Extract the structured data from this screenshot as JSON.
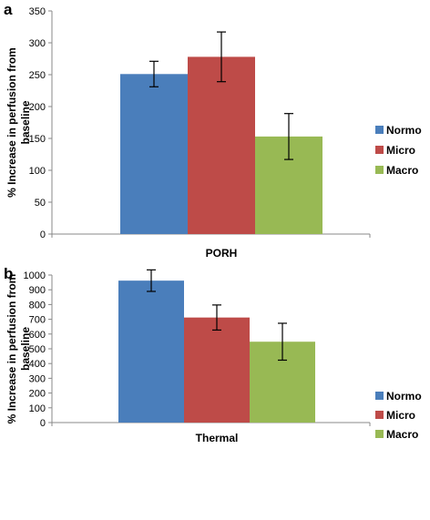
{
  "chart_data": [
    {
      "type": "bar",
      "panel_label": "a",
      "categories": [
        "PORH"
      ],
      "series": [
        {
          "name": "Normo",
          "values": [
            251
          ],
          "error": [
            20
          ],
          "color": "#4a7ebb"
        },
        {
          "name": "Micro",
          "values": [
            278
          ],
          "error": [
            39
          ],
          "color": "#be4b48"
        },
        {
          "name": "Macro",
          "values": [
            153
          ],
          "error": [
            36
          ],
          "color": "#98b954"
        }
      ],
      "xlabel": "PORH",
      "ylabel_lines": [
        "% Increase in perfusion from",
        "baseline"
      ],
      "ylim": [
        0,
        350
      ],
      "yticks": [
        0,
        50,
        100,
        150,
        200,
        250,
        300,
        350
      ],
      "grid": false,
      "legend": "right"
    },
    {
      "type": "bar",
      "panel_label": "b",
      "categories": [
        "Thermal"
      ],
      "series": [
        {
          "name": "Normo",
          "values": [
            962
          ],
          "error": [
            73
          ],
          "color": "#4a7ebb"
        },
        {
          "name": "Micro",
          "values": [
            712
          ],
          "error": [
            85
          ],
          "color": "#be4b48"
        },
        {
          "name": "Macro",
          "values": [
            548
          ],
          "error": [
            125
          ],
          "color": "#98b954"
        }
      ],
      "xlabel": "Thermal",
      "ylabel_lines": [
        "% Increase in perfusion from",
        "baseline"
      ],
      "ylim": [
        0,
        1000
      ],
      "yticks": [
        0,
        100,
        200,
        300,
        400,
        500,
        600,
        700,
        800,
        900,
        1000
      ],
      "grid": false,
      "legend": "right"
    }
  ]
}
